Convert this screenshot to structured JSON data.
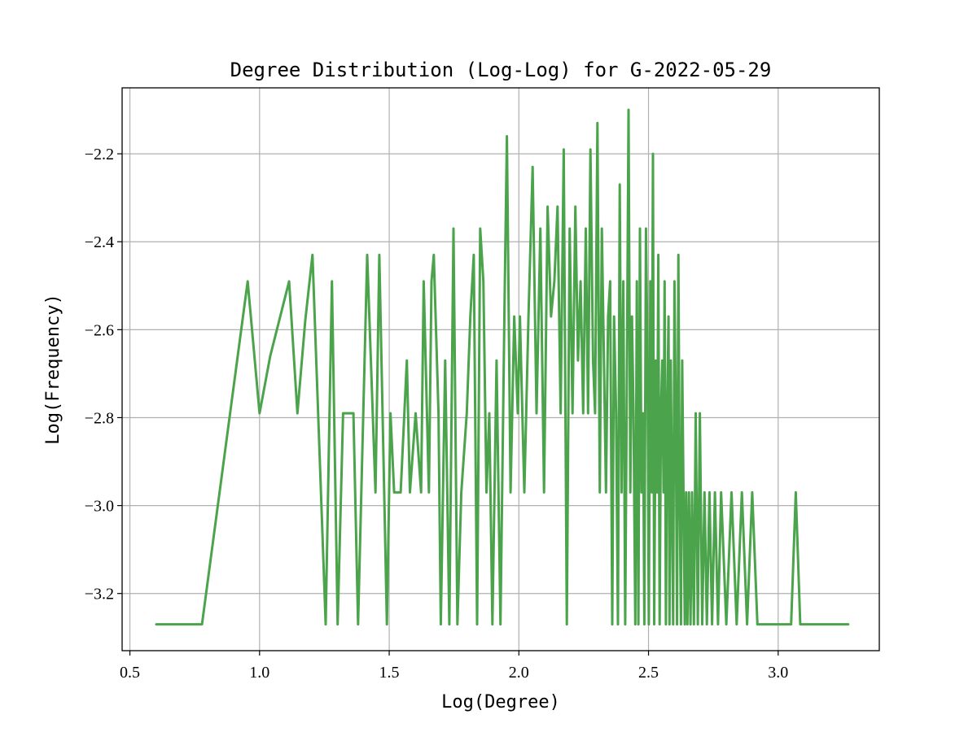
{
  "chart_data": {
    "type": "line",
    "title": "Degree Distribution (Log-Log) for G-2022-05-29",
    "xlabel": "Log(Degree)",
    "ylabel": "Log(Frequency)",
    "xlim": [
      0.47,
      3.39
    ],
    "ylim": [
      -3.33,
      -2.05
    ],
    "xticks": [
      0.5,
      1.0,
      1.5,
      2.0,
      2.5,
      3.0
    ],
    "xtick_labels": [
      "0.5",
      "1.0",
      "1.5",
      "2.0",
      "2.5",
      "3.0"
    ],
    "yticks": [
      -3.2,
      -3.0,
      -2.8,
      -2.6,
      -2.4,
      -2.2
    ],
    "ytick_labels": [
      "−3.2",
      "−3.0",
      "−2.8",
      "−2.6",
      "−2.4",
      "−2.2"
    ],
    "grid": true,
    "series": [
      {
        "color": "#4ba34b",
        "x": [
          0.602,
          0.778,
          0.954,
          1.0,
          1.041,
          1.114,
          1.146,
          1.176,
          1.204,
          1.255,
          1.279,
          1.301,
          1.322,
          1.362,
          1.38,
          1.415,
          1.447,
          1.462,
          1.491,
          1.505,
          1.519,
          1.544,
          1.568,
          1.58,
          1.602,
          1.623,
          1.633,
          1.653,
          1.663,
          1.672,
          1.69,
          1.699,
          1.716,
          1.732,
          1.748,
          1.763,
          1.778,
          1.799,
          1.813,
          1.826,
          1.839,
          1.851,
          1.863,
          1.875,
          1.886,
          1.898,
          1.914,
          1.929,
          1.944,
          1.954,
          1.968,
          1.982,
          1.996,
          2.004,
          2.021,
          2.037,
          2.053,
          2.068,
          2.083,
          2.097,
          2.111,
          2.124,
          2.137,
          2.149,
          2.161,
          2.173,
          2.185,
          2.196,
          2.207,
          2.218,
          2.228,
          2.238,
          2.248,
          2.258,
          2.267,
          2.276,
          2.286,
          2.294,
          2.303,
          2.312,
          2.32,
          2.328,
          2.336,
          2.344,
          2.352,
          2.36,
          2.367,
          2.375,
          2.382,
          2.389,
          2.396,
          2.403,
          2.41,
          2.417,
          2.423,
          2.43,
          2.436,
          2.442,
          2.449,
          2.455,
          2.461,
          2.467,
          2.473,
          2.479,
          2.484,
          2.49,
          2.496,
          2.501,
          2.507,
          2.512,
          2.517,
          2.522,
          2.528,
          2.533,
          2.538,
          2.543,
          2.548,
          2.553,
          2.558,
          2.562,
          2.567,
          2.572,
          2.577,
          2.581,
          2.586,
          2.59,
          2.595,
          2.6,
          2.605,
          2.61,
          2.615,
          2.62,
          2.625,
          2.63,
          2.635,
          2.64,
          2.645,
          2.65,
          2.656,
          2.662,
          2.668,
          2.675,
          2.682,
          2.69,
          2.698,
          2.707,
          2.716,
          2.725,
          2.735,
          2.745,
          2.756,
          2.768,
          2.78,
          2.8,
          2.82,
          2.84,
          2.86,
          2.88,
          2.9,
          2.92,
          2.95,
          3.0,
          3.05,
          3.068,
          3.085,
          3.15,
          3.2,
          3.27
        ],
        "y": [
          -3.27,
          -3.27,
          -2.49,
          -2.79,
          -2.66,
          -2.49,
          -2.79,
          -2.58,
          -2.43,
          -3.27,
          -2.49,
          -3.27,
          -2.79,
          -2.79,
          -3.27,
          -2.43,
          -2.97,
          -2.43,
          -3.27,
          -2.79,
          -2.97,
          -2.97,
          -2.67,
          -2.97,
          -2.79,
          -2.97,
          -2.49,
          -2.97,
          -2.49,
          -2.43,
          -2.79,
          -3.27,
          -2.67,
          -3.27,
          -2.37,
          -3.27,
          -2.97,
          -2.79,
          -2.57,
          -2.43,
          -3.27,
          -2.37,
          -2.49,
          -2.97,
          -2.79,
          -3.27,
          -2.67,
          -3.27,
          -2.57,
          -2.16,
          -2.97,
          -2.57,
          -2.79,
          -2.57,
          -2.97,
          -2.57,
          -2.23,
          -2.79,
          -2.37,
          -2.97,
          -2.32,
          -2.57,
          -2.49,
          -2.32,
          -2.79,
          -2.19,
          -3.27,
          -2.37,
          -2.79,
          -2.32,
          -2.67,
          -2.49,
          -2.79,
          -2.37,
          -2.79,
          -2.19,
          -2.67,
          -2.79,
          -2.13,
          -2.97,
          -2.37,
          -2.67,
          -2.97,
          -2.57,
          -2.49,
          -3.27,
          -2.57,
          -2.79,
          -3.27,
          -2.27,
          -2.97,
          -2.49,
          -3.27,
          -2.67,
          -2.1,
          -2.97,
          -2.57,
          -2.79,
          -3.27,
          -2.49,
          -3.27,
          -2.37,
          -2.97,
          -2.79,
          -3.27,
          -2.37,
          -2.67,
          -3.27,
          -2.49,
          -2.97,
          -2.2,
          -3.27,
          -2.67,
          -2.97,
          -2.43,
          -3.27,
          -2.79,
          -2.67,
          -2.97,
          -2.49,
          -3.27,
          -2.79,
          -2.57,
          -3.27,
          -2.67,
          -2.97,
          -3.27,
          -2.49,
          -2.79,
          -3.27,
          -2.43,
          -2.97,
          -3.27,
          -2.67,
          -2.97,
          -3.27,
          -2.97,
          -3.27,
          -2.97,
          -3.27,
          -2.97,
          -3.27,
          -2.79,
          -3.27,
          -2.79,
          -3.27,
          -2.97,
          -3.27,
          -2.97,
          -3.27,
          -2.97,
          -3.27,
          -2.97,
          -3.27,
          -2.97,
          -3.27,
          -2.97,
          -3.27,
          -2.97,
          -3.27,
          -3.27,
          -3.27,
          -3.27,
          -2.97,
          -3.27,
          -3.27,
          -3.27,
          -3.27
        ]
      }
    ]
  }
}
